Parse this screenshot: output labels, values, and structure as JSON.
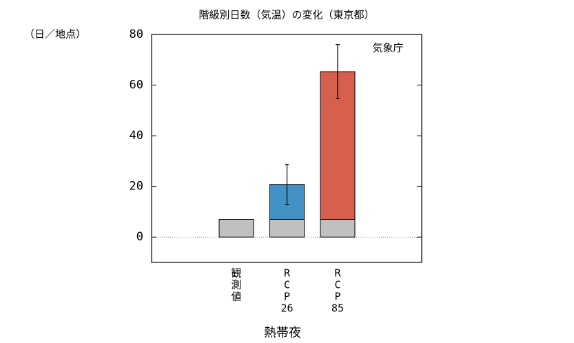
{
  "chart_data": {
    "type": "stacked_bar",
    "title": "階級別日数（気温）の変化（東京都）",
    "y_unit": "（日／地点）",
    "source": "気象庁",
    "x_label": "熱帯夜",
    "categories": [
      [
        "観",
        "測",
        "値"
      ],
      [
        "R",
        "C",
        "P",
        "26"
      ],
      [
        "R",
        "C",
        "P",
        "85"
      ]
    ],
    "series": [
      {
        "color": "#c0c0c0",
        "values": [
          7,
          7,
          7
        ]
      },
      {
        "colors": [
          null,
          "#4292c6",
          "#d6604d"
        ],
        "values": [
          null,
          13.8,
          58.3
        ],
        "errors": [
          null,
          7.9,
          10.7
        ]
      }
    ],
    "ylim": [
      -10,
      80
    ],
    "yticks": [
      0,
      20,
      40,
      60,
      80
    ],
    "zero_line": true
  }
}
